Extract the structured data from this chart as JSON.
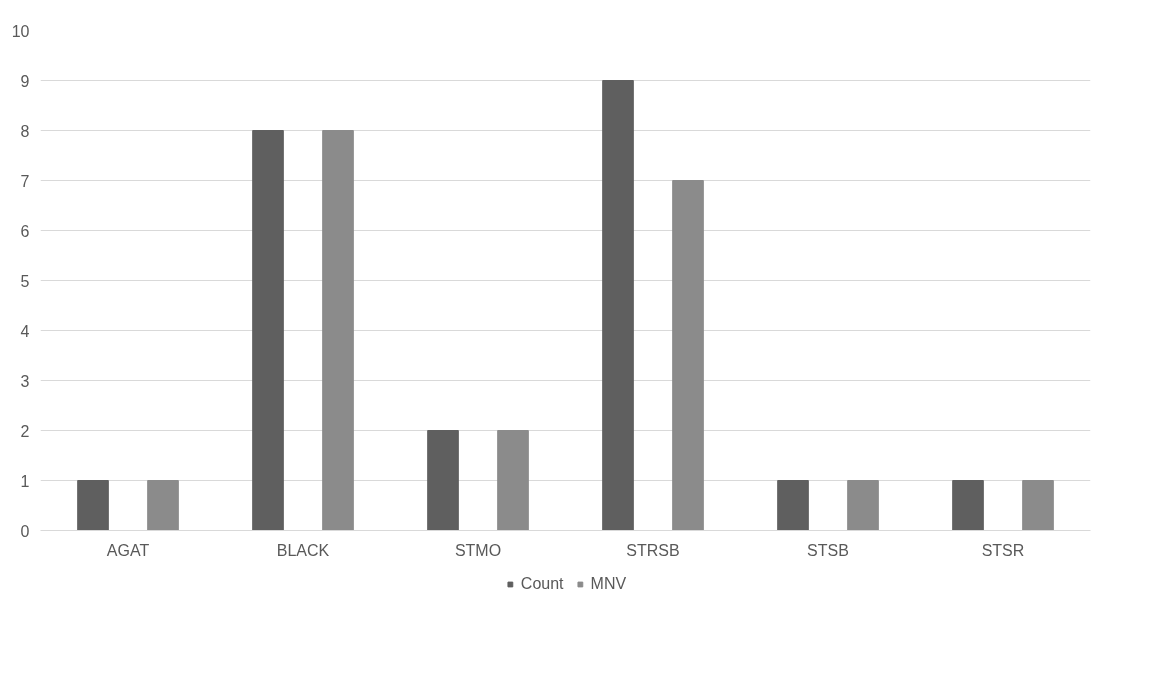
{
  "chart_data": {
    "type": "bar",
    "categories": [
      "AGAT",
      "BLACK",
      "STMO",
      "STRSB",
      "STSB",
      "STSR"
    ],
    "series": [
      {
        "name": "Count",
        "color": "#5f5f5f",
        "values": [
          1,
          8,
          2,
          9,
          1,
          1
        ]
      },
      {
        "name": "MNV",
        "color": "#8b8b8b",
        "values": [
          1,
          8,
          2,
          7,
          1,
          1
        ]
      }
    ],
    "ylim": [
      0,
      10
    ],
    "yticks": [
      0,
      1,
      2,
      3,
      4,
      5,
      6,
      7,
      8,
      9,
      10
    ],
    "grid": "y",
    "legend": "bottom"
  }
}
